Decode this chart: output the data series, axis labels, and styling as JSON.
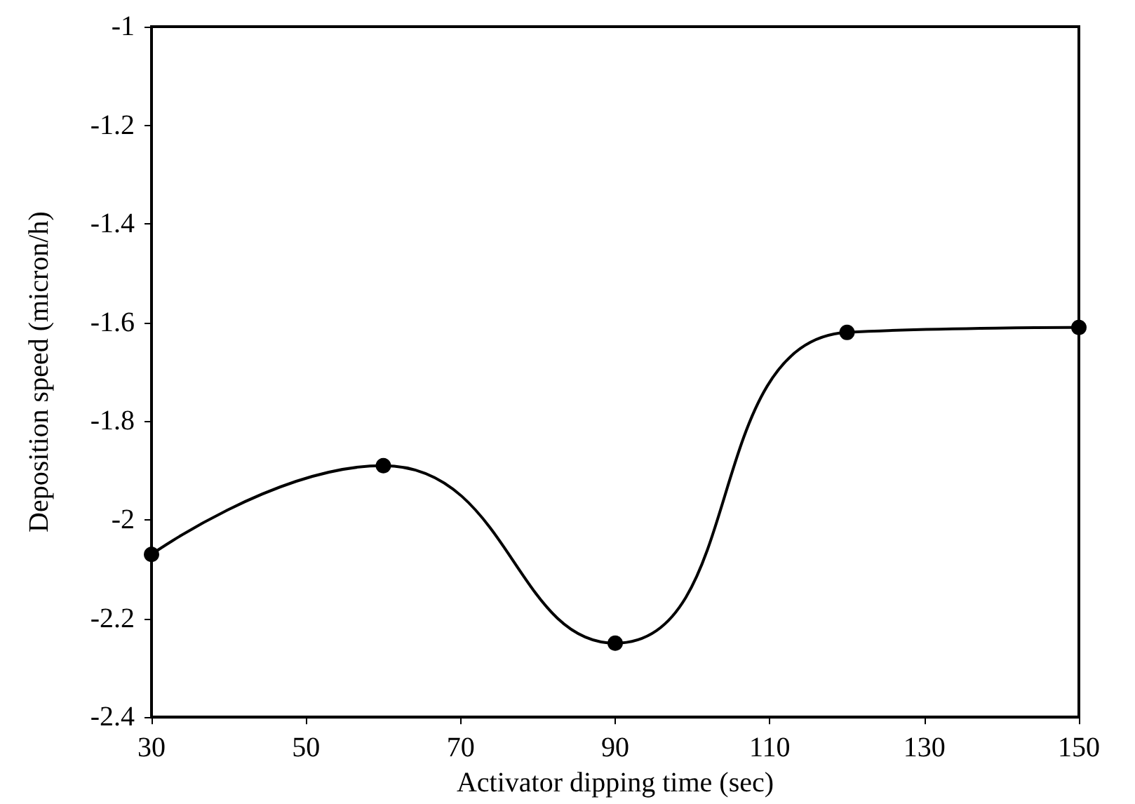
{
  "chart_data": {
    "type": "line",
    "xlabel": "Activator dipping time (sec)",
    "ylabel": "Deposition speed (micron/h)",
    "x": [
      30,
      60,
      90,
      120,
      150
    ],
    "series": [
      {
        "color": "#000000",
        "values": [
          -2.07,
          -1.89,
          -2.25,
          -1.62,
          -1.61
        ]
      }
    ],
    "xlim": [
      30,
      150
    ],
    "xticks": [
      30,
      50,
      70,
      90,
      110,
      130,
      150
    ],
    "ylim": [
      -2.4,
      -1
    ],
    "yticks": [
      -2.4,
      -2.2,
      -2,
      -1.8,
      -1.6,
      -1.4,
      -1.2,
      -1
    ],
    "grid": false,
    "marker": "circle",
    "line_style": "solid"
  }
}
